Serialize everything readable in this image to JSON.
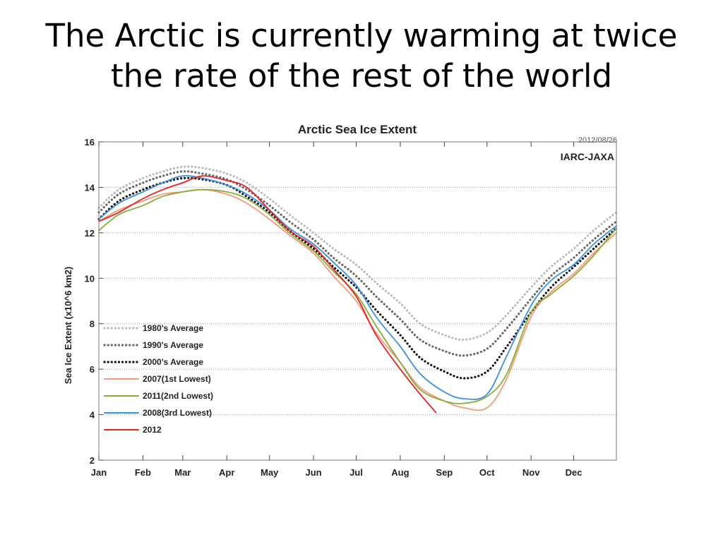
{
  "slide": {
    "title_line1": "The Arctic is currently warming at twice",
    "title_line2": "the rate of the rest of the world"
  },
  "chart_data": {
    "type": "line",
    "title": "Arctic Sea Ice Extent",
    "date_stamp": "2012/08/26",
    "source": "IARC-JAXA",
    "ylabel": "Sea Ice Extent (x10^6 km2)",
    "xlabel": "",
    "ylim": [
      2,
      16
    ],
    "yticks": [
      2,
      4,
      6,
      8,
      10,
      12,
      14,
      16
    ],
    "categories": [
      "Jan",
      "Feb",
      "Mar",
      "Apr",
      "May",
      "Jun",
      "Jul",
      "Aug",
      "Sep",
      "Oct",
      "Nov",
      "Dec"
    ],
    "grid": true,
    "legend_position": "lower-left",
    "series": [
      {
        "name": "1980's Average",
        "color": "#bbbbbb",
        "style": "dotted",
        "x": [
          "Jan 1",
          "Jan 15",
          "Feb 1",
          "Feb 15",
          "Mar 1",
          "Mar 15",
          "Apr 1",
          "Apr 15",
          "May 1",
          "May 15",
          "Jun 1",
          "Jun 15",
          "Jul 1",
          "Jul 15",
          "Aug 1",
          "Aug 15",
          "Sep 1",
          "Sep 15",
          "Oct 1",
          "Oct 15",
          "Nov 1",
          "Nov 15",
          "Dec 1",
          "Dec 15",
          "Dec 31"
        ],
        "values": [
          13.1,
          13.9,
          14.4,
          14.7,
          14.9,
          14.85,
          14.6,
          14.2,
          13.5,
          12.8,
          12.0,
          11.3,
          10.6,
          9.8,
          8.9,
          8.0,
          7.5,
          7.3,
          7.6,
          8.4,
          9.6,
          10.5,
          11.3,
          12.1,
          12.9
        ]
      },
      {
        "name": "1990's Average",
        "color": "#666666",
        "style": "dotted",
        "x": [
          "Jan 1",
          "Jan 15",
          "Feb 1",
          "Feb 15",
          "Mar 1",
          "Mar 15",
          "Apr 1",
          "Apr 15",
          "May 1",
          "May 15",
          "Jun 1",
          "Jun 15",
          "Jul 1",
          "Jul 15",
          "Aug 1",
          "Aug 15",
          "Sep 1",
          "Sep 15",
          "Oct 1",
          "Oct 15",
          "Nov 1",
          "Nov 15",
          "Dec 1",
          "Dec 15",
          "Dec 31"
        ],
        "values": [
          12.9,
          13.7,
          14.2,
          14.5,
          14.7,
          14.6,
          14.35,
          13.9,
          13.2,
          12.5,
          11.7,
          10.9,
          10.1,
          9.2,
          8.2,
          7.3,
          6.8,
          6.6,
          6.9,
          7.8,
          9.1,
          10.1,
          10.9,
          11.7,
          12.5
        ]
      },
      {
        "name": "2000's Average",
        "color": "#111111",
        "style": "dotted",
        "x": [
          "Jan 1",
          "Jan 15",
          "Feb 1",
          "Feb 15",
          "Mar 1",
          "Mar 15",
          "Apr 1",
          "Apr 15",
          "May 1",
          "May 15",
          "Jun 1",
          "Jun 15",
          "Jul 1",
          "Jul 15",
          "Aug 1",
          "Aug 15",
          "Sep 1",
          "Sep 15",
          "Oct 1",
          "Oct 15",
          "Nov 1",
          "Nov 15",
          "Dec 1",
          "Dec 15",
          "Dec 31"
        ],
        "values": [
          12.6,
          13.4,
          13.9,
          14.2,
          14.4,
          14.35,
          14.1,
          13.6,
          12.9,
          12.1,
          11.3,
          10.5,
          9.6,
          8.6,
          7.5,
          6.5,
          5.9,
          5.6,
          5.9,
          7.0,
          8.5,
          9.6,
          10.5,
          11.3,
          12.2
        ]
      },
      {
        "name": "2007(1st Lowest)",
        "color": "#f39a7a",
        "style": "solid",
        "x": [
          "Jan 1",
          "Jan 15",
          "Feb 1",
          "Feb 15",
          "Mar 1",
          "Mar 15",
          "Apr 1",
          "Apr 15",
          "May 1",
          "May 15",
          "Jun 1",
          "Jun 15",
          "Jul 1",
          "Jul 15",
          "Aug 1",
          "Aug 15",
          "Sep 1",
          "Sep 15",
          "Oct 1",
          "Oct 15",
          "Nov 1",
          "Nov 15",
          "Dec 1",
          "Dec 15",
          "Dec 31"
        ],
        "values": [
          12.5,
          13.0,
          13.4,
          13.7,
          13.8,
          13.9,
          13.7,
          13.3,
          12.6,
          11.9,
          11.1,
          10.1,
          9.0,
          7.6,
          6.3,
          5.2,
          4.6,
          4.3,
          4.3,
          5.6,
          8.3,
          9.4,
          10.2,
          11.1,
          12.0
        ]
      },
      {
        "name": "2011(2nd Lowest)",
        "color": "#8aab3a",
        "style": "solid",
        "x": [
          "Jan 1",
          "Jan 15",
          "Feb 1",
          "Feb 15",
          "Mar 1",
          "Mar 15",
          "Apr 1",
          "Apr 15",
          "May 1",
          "May 15",
          "Jun 1",
          "Jun 15",
          "Jul 1",
          "Jul 15",
          "Aug 1",
          "Aug 15",
          "Sep 1",
          "Sep 15",
          "Oct 1",
          "Oct 15",
          "Nov 1",
          "Nov 15",
          "Dec 1",
          "Dec 15",
          "Dec 31"
        ],
        "values": [
          12.1,
          12.8,
          13.2,
          13.6,
          13.8,
          13.9,
          13.8,
          13.5,
          12.8,
          12.0,
          11.2,
          10.3,
          9.3,
          7.9,
          6.3,
          5.1,
          4.6,
          4.5,
          4.8,
          5.8,
          8.5,
          9.3,
          10.1,
          11.0,
          12.2
        ]
      },
      {
        "name": "2008(3rd Lowest)",
        "color": "#3d8fe0",
        "style": "solid",
        "x": [
          "Jan 1",
          "Jan 15",
          "Feb 1",
          "Feb 15",
          "Mar 1",
          "Mar 15",
          "Apr 1",
          "Apr 15",
          "May 1",
          "May 15",
          "Jun 1",
          "Jun 15",
          "Jul 1",
          "Jul 15",
          "Aug 1",
          "Aug 15",
          "Sep 1",
          "Sep 15",
          "Oct 1",
          "Oct 15",
          "Nov 1",
          "Nov 15",
          "Dec 1",
          "Dec 15",
          "Dec 31"
        ],
        "values": [
          12.6,
          13.3,
          13.8,
          14.2,
          14.5,
          14.4,
          14.1,
          13.7,
          13.0,
          12.2,
          11.5,
          10.7,
          9.7,
          8.3,
          7.0,
          5.8,
          5.0,
          4.7,
          4.9,
          6.6,
          8.8,
          9.9,
          10.6,
          11.5,
          12.3
        ]
      },
      {
        "name": "2012",
        "color": "#e52222",
        "style": "solid",
        "x": [
          "Jan 1",
          "Jan 15",
          "Feb 1",
          "Feb 15",
          "Mar 1",
          "Mar 15",
          "Apr 1",
          "Apr 15",
          "May 1",
          "May 15",
          "Jun 1",
          "Jun 15",
          "Jul 1",
          "Jul 15",
          "Aug 1",
          "Aug 15",
          "Aug 26"
        ],
        "values": [
          12.5,
          12.9,
          13.5,
          13.9,
          14.2,
          14.5,
          14.3,
          14.0,
          13.0,
          12.1,
          11.4,
          10.4,
          9.2,
          7.5,
          6.0,
          4.9,
          4.1
        ]
      }
    ]
  }
}
